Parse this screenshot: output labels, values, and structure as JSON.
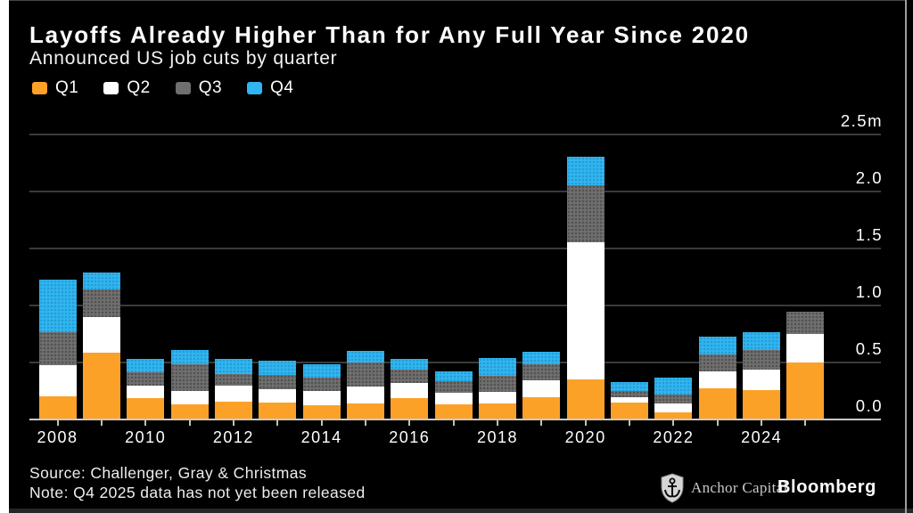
{
  "header": {
    "title": "Layoffs Already Higher Than for Any Full Year Since 2020",
    "subtitle": "Announced US job cuts by quarter"
  },
  "colors": {
    "background": "#000000",
    "q1_orange": "#FCA128",
    "q2_white": "#FFFFFF",
    "q3_gray": "#6F6F6F",
    "q4_blue": "#2FB5F2",
    "gridline": "#3A3A3A",
    "axis_line": "#C9C9C9",
    "text": "#FFFFFF"
  },
  "chart_data": {
    "type": "bar",
    "stacked": true,
    "unit": "millions of announced job cuts",
    "legend_position": "top-left",
    "grid": true,
    "categories": [
      "2008",
      "2009",
      "2010",
      "2011",
      "2012",
      "2013",
      "2014",
      "2015",
      "2016",
      "2017",
      "2018",
      "2019",
      "2020",
      "2021",
      "2022",
      "2023",
      "2024",
      "2025"
    ],
    "series": [
      {
        "name": "Q1",
        "color": "#FCA128",
        "values": [
          0.2,
          0.579,
          0.181,
          0.131,
          0.154,
          0.145,
          0.121,
          0.14,
          0.181,
          0.126,
          0.14,
          0.19,
          0.347,
          0.145,
          0.056,
          0.27,
          0.257,
          0.497
        ]
      },
      {
        "name": "Q2",
        "color": "#FFFFFF",
        "values": [
          0.275,
          0.318,
          0.116,
          0.115,
          0.14,
          0.114,
          0.125,
          0.147,
          0.133,
          0.101,
          0.097,
          0.148,
          1.208,
          0.048,
          0.078,
          0.152,
          0.175,
          0.247
        ]
      },
      {
        "name": "Q3",
        "color": "#6F6F6F",
        "values": [
          0.288,
          0.24,
          0.114,
          0.233,
          0.103,
          0.128,
          0.117,
          0.206,
          0.122,
          0.102,
          0.141,
          0.141,
          0.497,
          0.053,
          0.083,
          0.146,
          0.174,
          0.202
        ]
      },
      {
        "name": "Q4",
        "color": "#2FB5F2",
        "values": [
          0.461,
          0.151,
          0.119,
          0.127,
          0.127,
          0.122,
          0.12,
          0.105,
          0.091,
          0.09,
          0.16,
          0.114,
          0.253,
          0.077,
          0.147,
          0.153,
          0.155,
          0.0
        ]
      }
    ],
    "y_axis": {
      "side": "right",
      "max": 2.5,
      "ticks": [
        {
          "value": 0.0,
          "label": "0.0"
        },
        {
          "value": 0.5,
          "label": "0.5"
        },
        {
          "value": 1.0,
          "label": "1.0"
        },
        {
          "value": 1.5,
          "label": "1.5"
        },
        {
          "value": 2.0,
          "label": "2.0"
        },
        {
          "value": 2.5,
          "label": "2.5m"
        }
      ]
    },
    "x_axis": {
      "labeled_years": [
        "2008",
        "2010",
        "2012",
        "2014",
        "2016",
        "2018",
        "2020",
        "2022",
        "2024"
      ]
    }
  },
  "footer": {
    "source": "Source: Challenger, Gray & Christmas",
    "note": "Note: Q4 2025 data has not yet been released",
    "brand_left": "Anchor Capital",
    "brand_right": "Bloomberg"
  }
}
